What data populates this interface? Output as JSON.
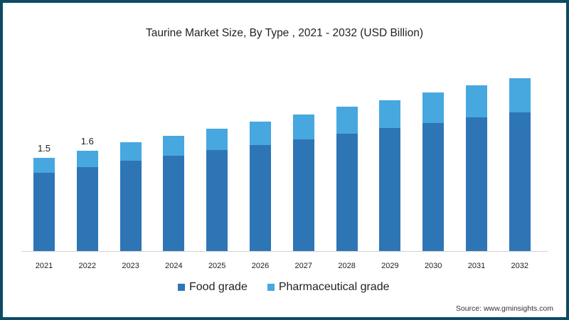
{
  "title": "Taurine Market Size, By Type , 2021 - 2032 (USD Billion)",
  "source": "Source: www.gminsights.com",
  "colors": {
    "food_grade": "#2e75b6",
    "pharmaceutical_grade": "#46a8df",
    "frame": "#0d4a63"
  },
  "legend": [
    {
      "label": "Food grade",
      "color": "#2e75b6"
    },
    {
      "label": "Pharmaceutical grade",
      "color": "#46a8df"
    }
  ],
  "value_labels": {
    "2021": "1.5",
    "2022": "1.6"
  },
  "chart_data": {
    "type": "bar",
    "stacked": true,
    "title": "Taurine Market Size, By Type , 2021 - 2032 (USD Billion)",
    "xlabel": "",
    "ylabel": "USD Billion",
    "categories": [
      "2021",
      "2022",
      "2023",
      "2024",
      "2025",
      "2026",
      "2027",
      "2028",
      "2029",
      "2030",
      "2031",
      "2032"
    ],
    "series": [
      {
        "name": "Food grade",
        "values": [
          1.26,
          1.35,
          1.45,
          1.54,
          1.63,
          1.71,
          1.8,
          1.89,
          1.98,
          2.06,
          2.15,
          2.23
        ]
      },
      {
        "name": "Pharmaceutical grade",
        "values": [
          0.24,
          0.27,
          0.3,
          0.32,
          0.34,
          0.38,
          0.4,
          0.43,
          0.45,
          0.49,
          0.52,
          0.55
        ]
      }
    ],
    "totals": [
      1.5,
      1.62,
      1.75,
      1.86,
      1.97,
      2.09,
      2.2,
      2.32,
      2.43,
      2.55,
      2.67,
      2.78
    ],
    "annotations": [
      {
        "x": "2021",
        "text": "1.5"
      },
      {
        "x": "2022",
        "text": "1.6"
      }
    ],
    "grid": false,
    "y_axis_visible": false,
    "legend_position": "bottom"
  }
}
